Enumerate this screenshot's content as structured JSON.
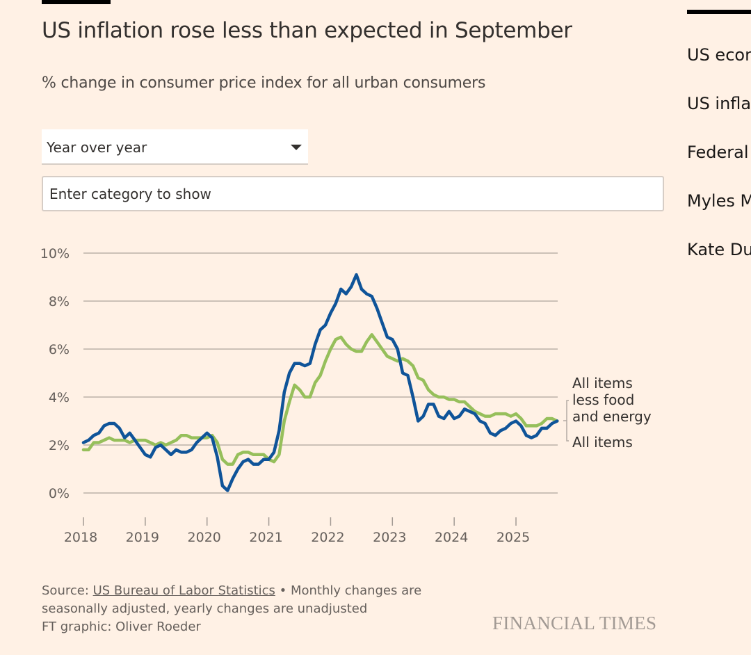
{
  "header": {
    "title": "US inflation rose less than expected in September",
    "subtitle": "% change in consumer price index for all urban consumers"
  },
  "controls": {
    "mode_select": {
      "value": "Year over year",
      "icon": "caret-down-icon"
    },
    "category_input": {
      "placeholder": "Enter category to show",
      "value": ""
    }
  },
  "sidebar": {
    "items": [
      {
        "label": "US econ"
      },
      {
        "label": "US infla"
      },
      {
        "label": "Federal"
      },
      {
        "label": "Myles M"
      },
      {
        "label": "Kate Du"
      }
    ]
  },
  "footer": {
    "source_prefix": "Source: ",
    "source_link": "US Bureau of Labor Statistics",
    "source_note": " • Monthly changes are seasonally adjusted, yearly changes are unadjusted",
    "credit": "FT graphic: Oliver Roeder",
    "logo": "FINANCIAL TIMES"
  },
  "colors": {
    "background": "#fff1e5",
    "all_items": "#0f5499",
    "core": "#96bf5b",
    "gridline": "#ccc1b7"
  },
  "chart_data": {
    "type": "line",
    "title": "US inflation rose less than expected in September",
    "subtitle": "% change in consumer price index for all urban consumers",
    "xlabel": "",
    "ylabel": "",
    "x_start": "2018-01",
    "x_end": "2025-09",
    "frequency": "monthly",
    "x_ticks": [
      "2018",
      "2019",
      "2020",
      "2021",
      "2022",
      "2023",
      "2024",
      "2025"
    ],
    "y_ticks": [
      "0%",
      "2%",
      "4%",
      "6%",
      "8%",
      "10%"
    ],
    "y_tick_values": [
      0,
      2,
      4,
      6,
      8,
      10
    ],
    "ylim": [
      0,
      10
    ],
    "grid": true,
    "legend": "direct labels at right end",
    "series": [
      {
        "name": "All items",
        "label_lines": [
          "All items"
        ],
        "color": "#0f5499",
        "values": [
          2.1,
          2.2,
          2.4,
          2.5,
          2.8,
          2.9,
          2.9,
          2.7,
          2.3,
          2.5,
          2.2,
          1.9,
          1.6,
          1.5,
          1.9,
          2.0,
          1.8,
          1.6,
          1.8,
          1.7,
          1.7,
          1.8,
          2.1,
          2.3,
          2.5,
          2.3,
          1.5,
          0.3,
          0.1,
          0.6,
          1.0,
          1.3,
          1.4,
          1.2,
          1.2,
          1.4,
          1.4,
          1.7,
          2.6,
          4.2,
          5.0,
          5.4,
          5.4,
          5.3,
          5.4,
          6.2,
          6.8,
          7.0,
          7.5,
          7.9,
          8.5,
          8.3,
          8.6,
          9.1,
          8.5,
          8.3,
          8.2,
          7.7,
          7.1,
          6.5,
          6.4,
          6.0,
          5.0,
          4.9,
          4.0,
          3.0,
          3.2,
          3.7,
          3.7,
          3.2,
          3.1,
          3.4,
          3.1,
          3.2,
          3.5,
          3.4,
          3.3,
          3.0,
          2.9,
          2.5,
          2.4,
          2.6,
          2.7,
          2.9,
          3.0,
          2.8,
          2.4,
          2.3,
          2.4,
          2.7,
          2.7,
          2.9,
          3.0
        ]
      },
      {
        "name": "All items less food and energy",
        "label_lines": [
          "All items",
          "less food",
          "and energy"
        ],
        "color": "#96bf5b",
        "values": [
          1.8,
          1.8,
          2.1,
          2.1,
          2.2,
          2.3,
          2.2,
          2.2,
          2.2,
          2.1,
          2.2,
          2.2,
          2.2,
          2.1,
          2.0,
          2.1,
          2.0,
          2.1,
          2.2,
          2.4,
          2.4,
          2.3,
          2.3,
          2.3,
          2.3,
          2.4,
          2.1,
          1.4,
          1.2,
          1.2,
          1.6,
          1.7,
          1.7,
          1.6,
          1.6,
          1.6,
          1.4,
          1.3,
          1.6,
          3.0,
          3.8,
          4.5,
          4.3,
          4.0,
          4.0,
          4.6,
          4.9,
          5.5,
          6.0,
          6.4,
          6.5,
          6.2,
          6.0,
          5.9,
          5.9,
          6.3,
          6.6,
          6.3,
          6.0,
          5.7,
          5.6,
          5.5,
          5.6,
          5.5,
          5.3,
          4.8,
          4.7,
          4.3,
          4.1,
          4.0,
          4.0,
          3.9,
          3.9,
          3.8,
          3.8,
          3.6,
          3.4,
          3.3,
          3.2,
          3.2,
          3.3,
          3.3,
          3.3,
          3.2,
          3.3,
          3.1,
          2.8,
          2.8,
          2.8,
          2.9,
          3.1,
          3.1,
          3.0
        ]
      }
    ]
  }
}
